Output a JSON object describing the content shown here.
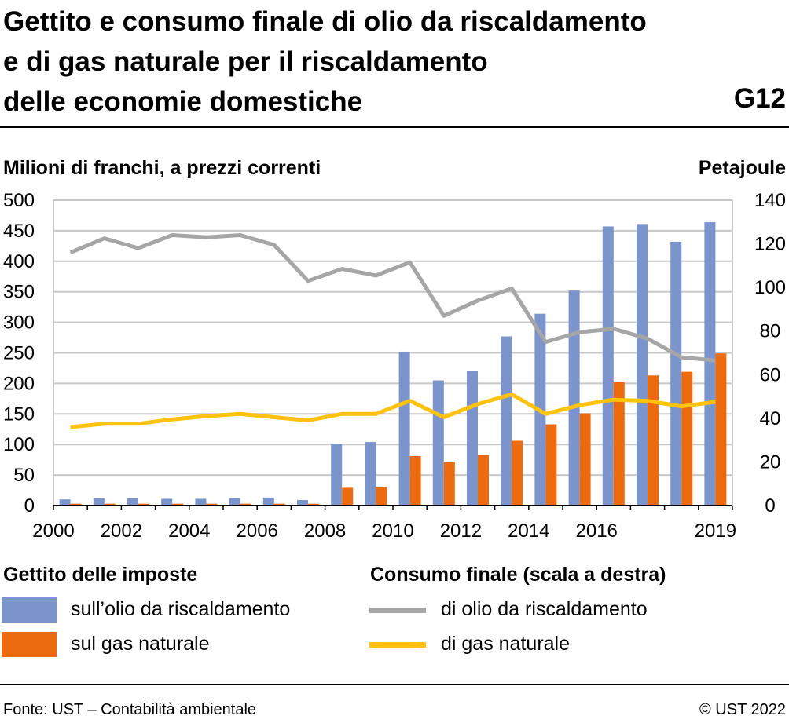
{
  "header": {
    "title_lines": [
      "Gettito e consumo finale di olio da riscaldamento",
      "e di gas naturale per il riscaldamento",
      "delle economie domestiche"
    ],
    "graphic_code": "G12"
  },
  "legend": {
    "left_heading": "Gettito delle imposte",
    "right_heading": "Consumo finale (scala a destra)",
    "items": [
      {
        "label": "sull’olio da riscaldamento",
        "color": "#7b94cc"
      },
      {
        "label": "sul gas naturale",
        "color": "#ec6b0e"
      },
      {
        "label": "di olio da riscaldamento",
        "color": "#a6a6a6"
      },
      {
        "label": "di gas naturale",
        "color": "#ffc20e"
      }
    ]
  },
  "footer": {
    "source": "Fonte: UST – Contabilità ambientale",
    "copyright": "© UST 2022"
  },
  "chart_data": {
    "type": "bar",
    "ylabel": "Milioni di franchi, a prezzi correnti",
    "y2label": "Petajoule",
    "ylim": [
      0,
      500
    ],
    "y2lim": [
      0,
      140
    ],
    "yticks": [
      0,
      50,
      100,
      150,
      200,
      250,
      300,
      350,
      400,
      450,
      500
    ],
    "y2ticks": [
      0,
      20,
      40,
      60,
      80,
      100,
      120,
      140
    ],
    "categories": [
      "2000",
      "2001",
      "2002",
      "2003",
      "2004",
      "2005",
      "2006",
      "2007",
      "2008",
      "2009",
      "2010",
      "2011",
      "2012",
      "2013",
      "2014",
      "2015",
      "2016",
      "2017",
      "2018",
      "2019"
    ],
    "xtick_labels": [
      "2000",
      "",
      "2002",
      "",
      "2004",
      "",
      "2006",
      "",
      "2008",
      "",
      "2010",
      "",
      "2012",
      "",
      "2014",
      "",
      "2016",
      "",
      "",
      "2019"
    ],
    "grid": true,
    "series": [
      {
        "name": "sull’olio da riscaldamento",
        "kind": "bar",
        "axis": "left",
        "color": "#7b94cc",
        "values": [
          10,
          12,
          12,
          11,
          11,
          12,
          13,
          9,
          101,
          104,
          252,
          205,
          221,
          277,
          314,
          352,
          457,
          461,
          432,
          464
        ]
      },
      {
        "name": "sul gas naturale",
        "kind": "bar",
        "axis": "left",
        "color": "#ec6b0e",
        "values": [
          3,
          3,
          3,
          3,
          3,
          3,
          3,
          3,
          29,
          31,
          81,
          72,
          83,
          106,
          133,
          151,
          202,
          213,
          219,
          249
        ]
      },
      {
        "name": "di olio da riscaldamento",
        "kind": "line",
        "axis": "right",
        "color": "#a6a6a6",
        "values": [
          116,
          122.5,
          118,
          124,
          123,
          124,
          119.5,
          103,
          108.5,
          105.5,
          111.5,
          87,
          94,
          99.5,
          75,
          79.5,
          81,
          76.5,
          68,
          66.5
        ]
      },
      {
        "name": "di gas naturale",
        "kind": "line",
        "axis": "right",
        "color": "#ffc20e",
        "values": [
          36,
          37.5,
          37.5,
          39.5,
          41,
          42,
          40.5,
          39,
          42,
          42,
          48,
          40.5,
          46.5,
          51,
          42,
          46,
          48.5,
          48,
          45.5,
          47.5
        ]
      }
    ]
  }
}
